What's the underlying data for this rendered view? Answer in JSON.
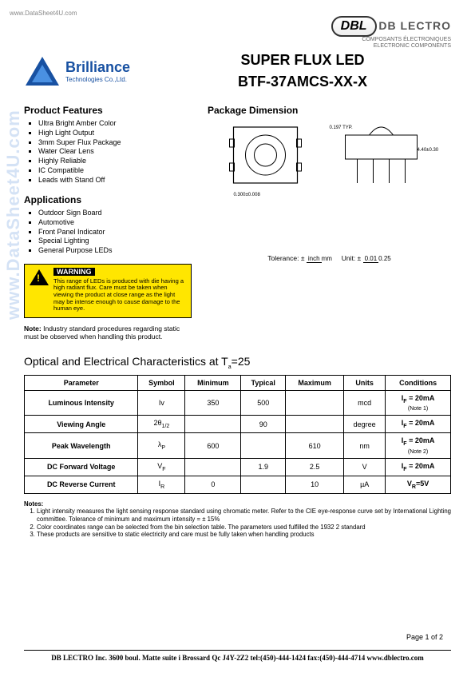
{
  "watermark": {
    "url": "www.DataSheet4U.com",
    "side": "www.DataSheet4U.com"
  },
  "header": {
    "dbl_logo_text": "DBL",
    "dbl_title": "DB LECTRO",
    "dbl_sub1": "COMPOSANTS ÉLECTRONIQUES",
    "dbl_sub2": "ELECTRONIC COMPONENTS",
    "brand_name": "Brilliance",
    "brand_sub": "Technologies Co.,Ltd.",
    "main_title": "SUPER FLUX LED",
    "part_number": "BTF-37AMCS-XX-X"
  },
  "sections": {
    "features_title": "Product Features",
    "features": [
      "Ultra Bright Amber Color",
      "High Light Output",
      "3mm Super Flux Package",
      "Water Clear Lens",
      "Highly Reliable",
      "IC Compatible",
      "Leads with Stand Off"
    ],
    "apps_title": "Applications",
    "apps": [
      "Outdoor Sign Board",
      "Automotive",
      "Front Panel Indicator",
      "Special Lighting",
      "General Purpose LEDs"
    ],
    "pkg_title": "Package Dimension",
    "warning_title": "WARNING",
    "warning_text": "This range of LEDs is produced with die having a high radiant flux. Care must be taken when viewing the product at close range as the light may be intense enough to cause damage to the human eye.",
    "note_label": "Note:",
    "note_text": "Industry standard procedures regarding static must be observed when handling this product.",
    "tolerance_label": "Tolerance:  ±",
    "tol_top": "inch",
    "tol_bot": "mm",
    "unit_label": "Unit:  ±",
    "unit_top": "0.01",
    "unit_bot": "0.25"
  },
  "table": {
    "title_prefix": "Optical and Electrical Characteristics at T",
    "title_sub": "a",
    "title_suffix": "=25",
    "columns": [
      "Parameter",
      "Symbol",
      "Minimum",
      "Typical",
      "Maximum",
      "Units",
      "Conditions"
    ],
    "rows": [
      {
        "param": "Luminous Intensity",
        "sym": "Iv",
        "min": "350",
        "typ": "500",
        "max": "",
        "units": "mcd",
        "cond": "I_F = 20mA",
        "note": "(Note 1)"
      },
      {
        "param": "Viewing Angle",
        "sym": "2θ_1/2",
        "min": "",
        "typ": "90",
        "max": "",
        "units": "degree",
        "cond": "I_F = 20mA",
        "note": ""
      },
      {
        "param": "Peak Wavelength",
        "sym": "λ_P",
        "min": "600",
        "typ": "",
        "max": "610",
        "units": "nm",
        "cond": "I_F = 20mA",
        "note": "(Note 2)"
      },
      {
        "param": "DC Forward Voltage",
        "sym": "V_F",
        "min": "",
        "typ": "1.9",
        "max": "2.5",
        "units": "V",
        "cond": "I_F = 20mA",
        "note": ""
      },
      {
        "param": "DC Reverse Current",
        "sym": "I_R",
        "min": "0",
        "typ": "",
        "max": "10",
        "units": "µA",
        "cond": "V_R=5V",
        "note": ""
      }
    ]
  },
  "notes": {
    "heading": "Notes:",
    "items": [
      "Light intensity measures the light sensing response standard using chromatic meter.  Refer to the CIE eye-response curve set by International Lighting committee.   Tolerance of minimum and maximum intensity = ± 15%",
      "Color coordinates range can be selected from the bin selection table.   The parameters used fulfilled the 1932 2 standard",
      "These products are sensitive to static electricity and care must be fully taken when handling products"
    ]
  },
  "footer": {
    "page": "Page 1 of 2",
    "line": "DB LECTRO Inc. 3600 boul. Matte suite i Brossard Qc J4Y-2Z2 tel:(450)-444-1424 fax:(450)-444-4714 www.dblectro.com"
  },
  "colors": {
    "brand_blue": "#1851a2",
    "warn_yellow": "#ffe600"
  }
}
